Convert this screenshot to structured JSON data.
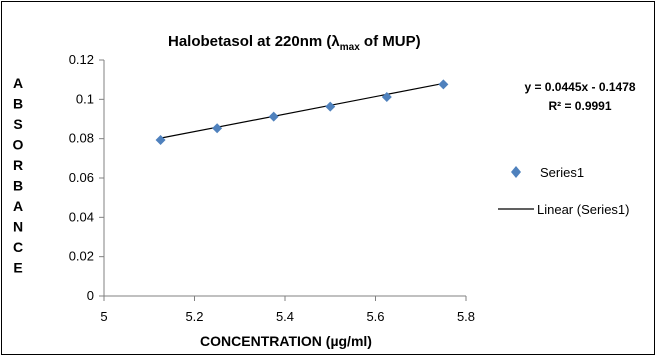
{
  "chart_data": {
    "type": "scatter",
    "title_main": "Halobetasol at 220nm (λ",
    "title_sub": "max",
    "title_tail": "of MUP)",
    "xlabel": "CONCENTRATION (µg/ml)",
    "ylabel_letters": [
      "A",
      "B",
      "S",
      "O",
      "R",
      "B",
      "A",
      "N",
      "C",
      "E"
    ],
    "xlim": [
      5,
      5.8
    ],
    "ylim": [
      0,
      0.12
    ],
    "x_ticks": [
      "5",
      "5.2",
      "5.4",
      "5.6",
      "5.8"
    ],
    "y_ticks": [
      "0",
      "0.02",
      "0.04",
      "0.06",
      "0.08",
      "0.1",
      "0.12"
    ],
    "series": [
      {
        "name": "Series1",
        "marker": "diamond",
        "color": "#4F81BD",
        "x": [
          5.125,
          5.25,
          5.375,
          5.5,
          5.625,
          5.75
        ],
        "y": [
          0.0793,
          0.0853,
          0.0912,
          0.0963,
          0.1012,
          0.1076
        ]
      }
    ],
    "trendline": {
      "name": "Linear (Series1)",
      "color": "#000000",
      "equation": "y = 0.0445x - 0.1478",
      "r_squared": "R² = 0.9991",
      "slope": 0.0445,
      "intercept": -0.1478
    },
    "legend_position": "right",
    "grid": false
  }
}
